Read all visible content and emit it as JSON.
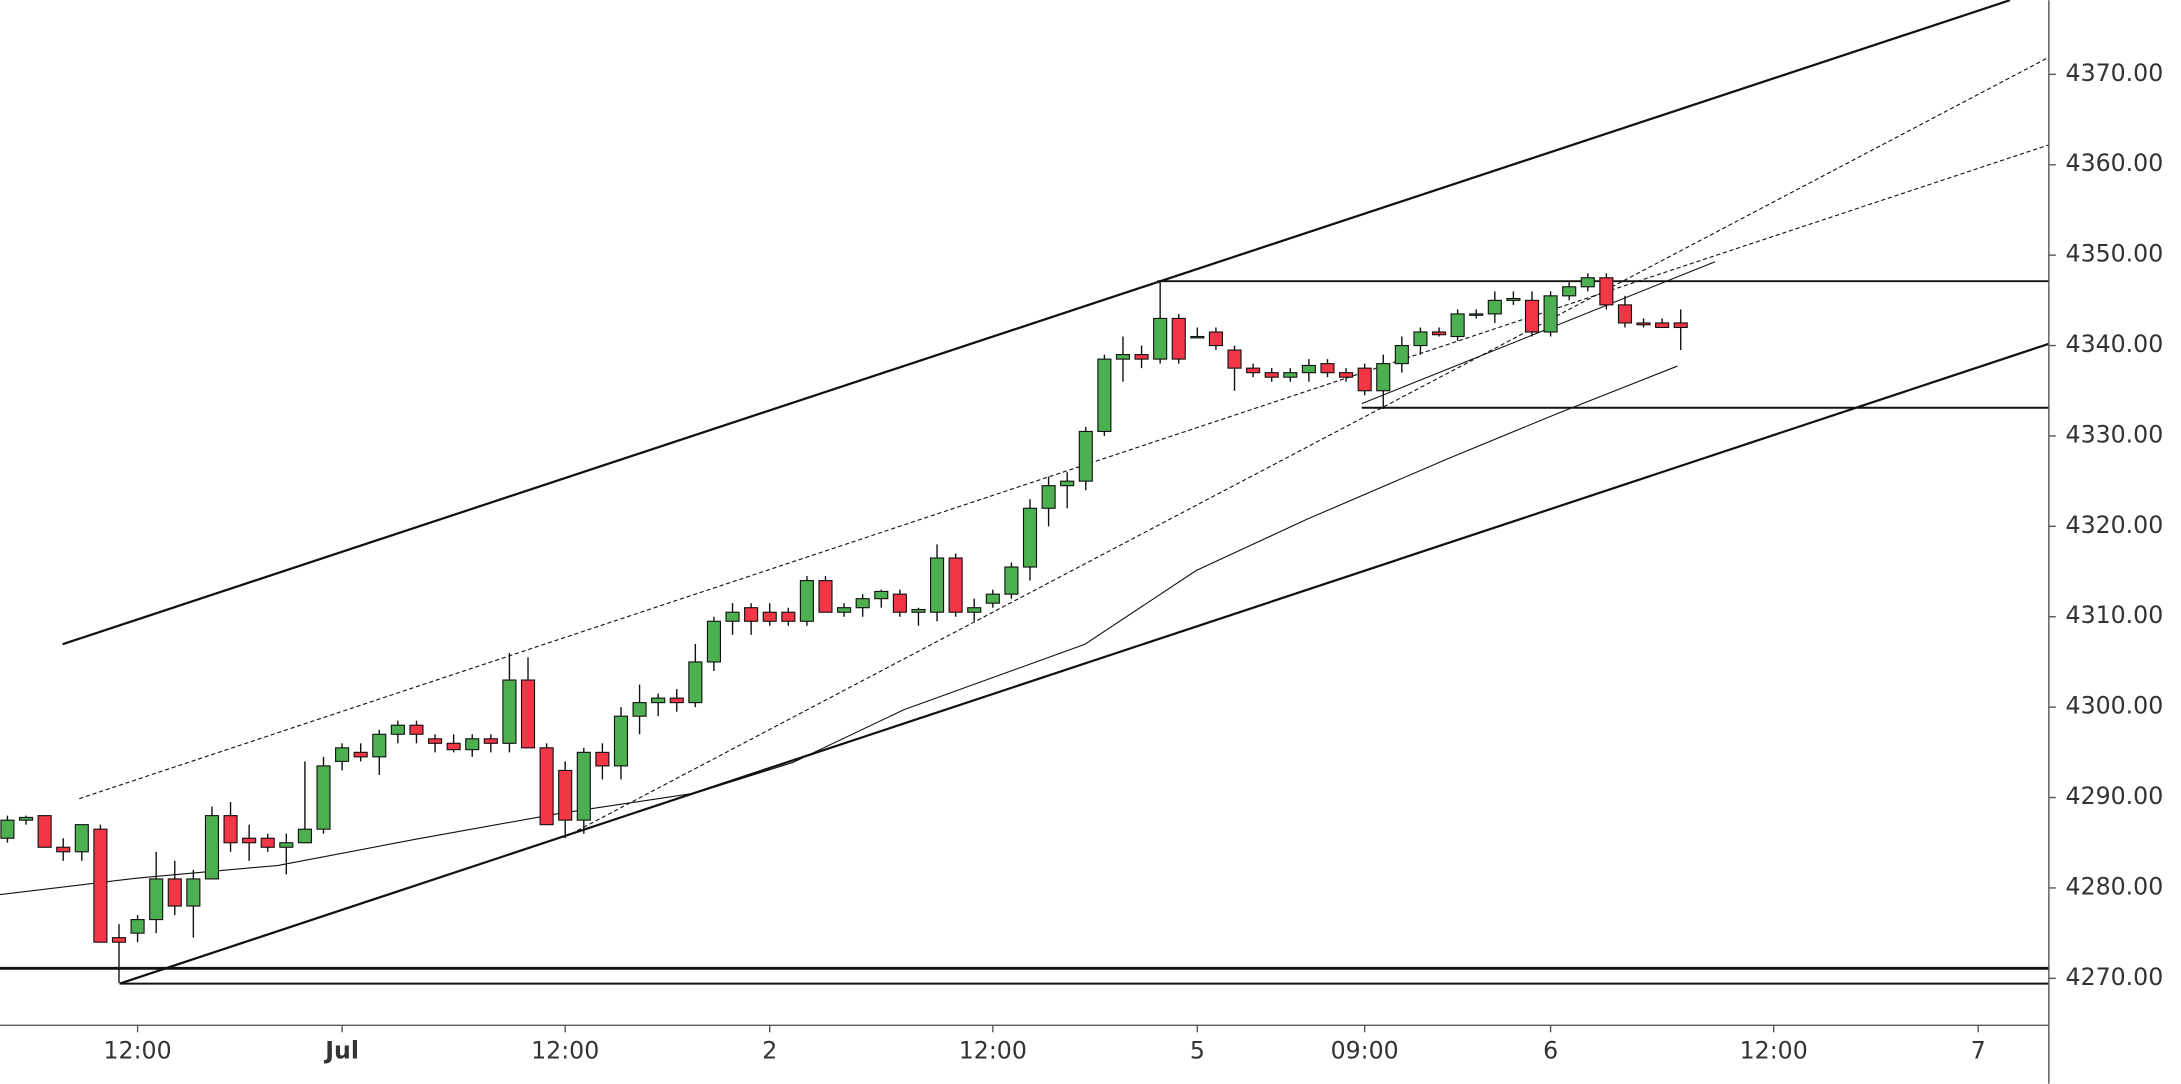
{
  "chart_data": {
    "type": "candlestick",
    "up_color": "#4caf50",
    "down_color": "#f23645",
    "open": [
      4285.5,
      4287.5,
      4288,
      4284.5,
      4284,
      4286.5,
      4274.5,
      4275,
      4276.5,
      4281,
      4278,
      4281,
      4288,
      4285.5,
      4285.5,
      4284.5,
      4285,
      4286.5,
      4294,
      4295,
      4294.5,
      4297,
      4298,
      4296.5,
      4296,
      4295.3,
      4296.5,
      4296,
      4303,
      4295.5,
      4293,
      4287.5,
      4295,
      4293.5,
      4299,
      4300.5,
      4301,
      4300.5,
      4305,
      4309.5,
      4311,
      4310.5,
      4310.5,
      4309.5,
      4314,
      4310.5,
      4311,
      4312,
      4312.5,
      4310.5,
      4310.5,
      4316.5,
      4310.5,
      4311.5,
      4312.5,
      4315.5,
      4322,
      4324.5,
      4325,
      4330.5,
      4338.5,
      4339,
      4338.5,
      4343,
      4341,
      4341.5,
      4339.5,
      4337.5,
      4337,
      4336.5,
      4337,
      4338,
      4337,
      4337.5,
      4335,
      4338,
      4340,
      4341.5,
      4341,
      4343.5,
      4343.5,
      4345,
      4345,
      4341.5,
      4345.5,
      4346.5,
      4347.5,
      4344.5,
      4342.5,
      4342.5,
      4342.5
    ],
    "high": [
      4288,
      4288,
      4288,
      4285.5,
      4287,
      4287,
      4276,
      4277,
      4284,
      4283,
      4282,
      4289,
      4289.5,
      4287,
      4286,
      4286,
      4294,
      4294.5,
      4296,
      4296,
      4297.5,
      4298.5,
      4298.5,
      4297,
      4297,
      4297,
      4297,
      4306,
      4305.5,
      4296,
      4294,
      4295.5,
      4296,
      4300,
      4302.5,
      4301.5,
      4302,
      4307,
      4310,
      4311.5,
      4311.5,
      4311.5,
      4311,
      4314.5,
      4314.5,
      4311.5,
      4312.5,
      4313,
      4313,
      4311,
      4318,
      4317,
      4312,
      4313,
      4316,
      4323,
      4325.5,
      4326,
      4331,
      4339,
      4341,
      4340,
      4347,
      4343.5,
      4342,
      4342,
      4340,
      4338,
      4337.5,
      4337.5,
      4338.5,
      4338.5,
      4337.5,
      4338,
      4339,
      4341,
      4342,
      4342,
      4344,
      4344,
      4346,
      4346,
      4346,
      4346,
      4347,
      4348,
      4348,
      4345.5,
      4343,
      4343,
      4344
    ],
    "low": [
      4285,
      4287,
      4284.5,
      4283,
      4283,
      4274,
      4269.5,
      4274,
      4275,
      4277,
      4274.5,
      4281,
      4284,
      4283,
      4284,
      4281.5,
      4285,
      4286,
      4293,
      4294,
      4292.5,
      4296,
      4296,
      4295,
      4295,
      4294.5,
      4295,
      4295,
      4295.5,
      4287,
      4285.5,
      4286,
      4292,
      4292,
      4297,
      4299,
      4299.5,
      4300,
      4304,
      4308,
      4308,
      4309,
      4309,
      4309,
      4310.5,
      4310,
      4310,
      4311,
      4310,
      4309,
      4309.5,
      4310,
      4309.5,
      4311,
      4312,
      4314,
      4320,
      4322,
      4324,
      4330,
      4336,
      4337.5,
      4338,
      4338,
      4341,
      4339.5,
      4335,
      4336.5,
      4336,
      4336,
      4336,
      4336.5,
      4336,
      4334.5,
      4333,
      4337,
      4339,
      4341,
      4340.5,
      4343,
      4342.5,
      4344.5,
      4341,
      4341,
      4345,
      4346,
      4344,
      4342,
      4342,
      4342,
      4339.5
    ],
    "close": [
      4287.5,
      4287.8,
      4284.5,
      4284,
      4287,
      4274,
      4274,
      4276.5,
      4281,
      4278,
      4281,
      4288,
      4285,
      4285,
      4284.5,
      4285,
      4286.5,
      4293.5,
      4295.5,
      4294.5,
      4297,
      4298,
      4297,
      4296,
      4295.3,
      4296.5,
      4296,
      4303,
      4295.5,
      4287,
      4287.5,
      4295,
      4293.5,
      4299,
      4300.5,
      4301,
      4300.5,
      4305,
      4309.5,
      4310.5,
      4309.5,
      4309.5,
      4309.5,
      4314,
      4310.5,
      4311,
      4312,
      4312.8,
      4310.5,
      4310.8,
      4316.5,
      4310.5,
      4311,
      4312.5,
      4315.5,
      4322,
      4324.5,
      4325,
      4330.5,
      4338.5,
      4339,
      4338.5,
      4343,
      4338.5,
      4341,
      4340,
      4337.5,
      4337,
      4336.5,
      4337,
      4337.8,
      4337,
      4336.5,
      4335,
      4338,
      4340,
      4341.5,
      4341.2,
      4343.5,
      4343.5,
      4345,
      4345.2,
      4341.5,
      4345.5,
      4346.5,
      4347.5,
      4344.5,
      4342.5,
      4342.3,
      4342,
      4342
    ],
    "xlim": [
      -0.4,
      109.8
    ],
    "xticks": [
      {
        "value": 7,
        "label": "12:00"
      },
      {
        "value": 18,
        "label": "Jul"
      },
      {
        "value": 30,
        "label": "12:00"
      },
      {
        "value": 41,
        "label": "2"
      },
      {
        "value": 53,
        "label": "12:00"
      },
      {
        "value": 64,
        "label": "5"
      },
      {
        "value": 73,
        "label": "09:00"
      },
      {
        "value": 83,
        "label": "6"
      },
      {
        "value": 95,
        "label": "12:00"
      },
      {
        "value": 106,
        "label": "7"
      }
    ],
    "ylim": [
      4264.8,
      4378.2
    ],
    "yticks": [
      {
        "value": 4270,
        "label": "4270.00"
      },
      {
        "value": 4280,
        "label": "4280.00"
      },
      {
        "value": 4290,
        "label": "4290.00"
      },
      {
        "value": 4300,
        "label": "4300.00"
      },
      {
        "value": 4310,
        "label": "4310.00"
      },
      {
        "value": 4320,
        "label": "4320.00"
      },
      {
        "value": 4330,
        "label": "4330.00"
      },
      {
        "value": 4340,
        "label": "4340.00"
      },
      {
        "value": 4350,
        "label": "4350.00"
      },
      {
        "value": 4360,
        "label": "4360.00"
      },
      {
        "value": 4370,
        "label": "4370.00"
      }
    ]
  }
}
